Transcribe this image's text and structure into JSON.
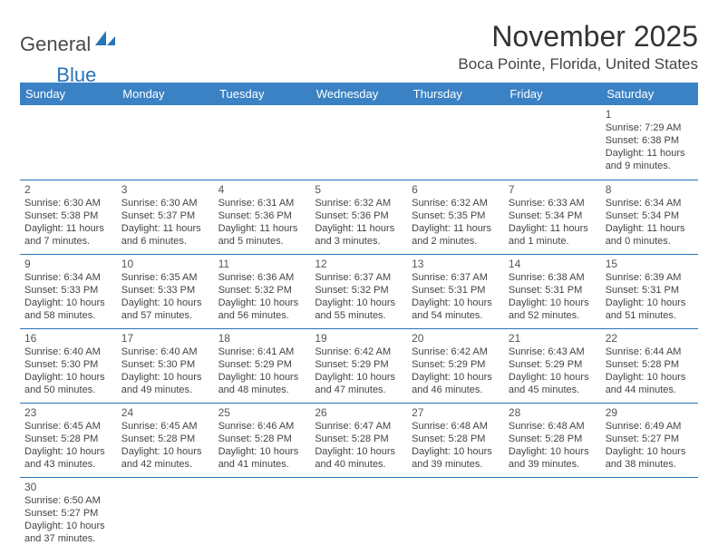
{
  "logo": {
    "general": "General",
    "blue": "Blue"
  },
  "title": "November 2025",
  "location": "Boca Pointe, Florida, United States",
  "colors": {
    "header_bg": "#3b82c4",
    "header_text": "#ffffff",
    "border": "#2874b8",
    "text": "#444444",
    "daynum": "#555555"
  },
  "weekdays": [
    "Sunday",
    "Monday",
    "Tuesday",
    "Wednesday",
    "Thursday",
    "Friday",
    "Saturday"
  ],
  "days": [
    {
      "n": "1",
      "sunrise": "Sunrise: 7:29 AM",
      "sunset": "Sunset: 6:38 PM",
      "daylight": "Daylight: 11 hours and 9 minutes."
    },
    {
      "n": "2",
      "sunrise": "Sunrise: 6:30 AM",
      "sunset": "Sunset: 5:38 PM",
      "daylight": "Daylight: 11 hours and 7 minutes."
    },
    {
      "n": "3",
      "sunrise": "Sunrise: 6:30 AM",
      "sunset": "Sunset: 5:37 PM",
      "daylight": "Daylight: 11 hours and 6 minutes."
    },
    {
      "n": "4",
      "sunrise": "Sunrise: 6:31 AM",
      "sunset": "Sunset: 5:36 PM",
      "daylight": "Daylight: 11 hours and 5 minutes."
    },
    {
      "n": "5",
      "sunrise": "Sunrise: 6:32 AM",
      "sunset": "Sunset: 5:36 PM",
      "daylight": "Daylight: 11 hours and 3 minutes."
    },
    {
      "n": "6",
      "sunrise": "Sunrise: 6:32 AM",
      "sunset": "Sunset: 5:35 PM",
      "daylight": "Daylight: 11 hours and 2 minutes."
    },
    {
      "n": "7",
      "sunrise": "Sunrise: 6:33 AM",
      "sunset": "Sunset: 5:34 PM",
      "daylight": "Daylight: 11 hours and 1 minute."
    },
    {
      "n": "8",
      "sunrise": "Sunrise: 6:34 AM",
      "sunset": "Sunset: 5:34 PM",
      "daylight": "Daylight: 11 hours and 0 minutes."
    },
    {
      "n": "9",
      "sunrise": "Sunrise: 6:34 AM",
      "sunset": "Sunset: 5:33 PM",
      "daylight": "Daylight: 10 hours and 58 minutes."
    },
    {
      "n": "10",
      "sunrise": "Sunrise: 6:35 AM",
      "sunset": "Sunset: 5:33 PM",
      "daylight": "Daylight: 10 hours and 57 minutes."
    },
    {
      "n": "11",
      "sunrise": "Sunrise: 6:36 AM",
      "sunset": "Sunset: 5:32 PM",
      "daylight": "Daylight: 10 hours and 56 minutes."
    },
    {
      "n": "12",
      "sunrise": "Sunrise: 6:37 AM",
      "sunset": "Sunset: 5:32 PM",
      "daylight": "Daylight: 10 hours and 55 minutes."
    },
    {
      "n": "13",
      "sunrise": "Sunrise: 6:37 AM",
      "sunset": "Sunset: 5:31 PM",
      "daylight": "Daylight: 10 hours and 54 minutes."
    },
    {
      "n": "14",
      "sunrise": "Sunrise: 6:38 AM",
      "sunset": "Sunset: 5:31 PM",
      "daylight": "Daylight: 10 hours and 52 minutes."
    },
    {
      "n": "15",
      "sunrise": "Sunrise: 6:39 AM",
      "sunset": "Sunset: 5:31 PM",
      "daylight": "Daylight: 10 hours and 51 minutes."
    },
    {
      "n": "16",
      "sunrise": "Sunrise: 6:40 AM",
      "sunset": "Sunset: 5:30 PM",
      "daylight": "Daylight: 10 hours and 50 minutes."
    },
    {
      "n": "17",
      "sunrise": "Sunrise: 6:40 AM",
      "sunset": "Sunset: 5:30 PM",
      "daylight": "Daylight: 10 hours and 49 minutes."
    },
    {
      "n": "18",
      "sunrise": "Sunrise: 6:41 AM",
      "sunset": "Sunset: 5:29 PM",
      "daylight": "Daylight: 10 hours and 48 minutes."
    },
    {
      "n": "19",
      "sunrise": "Sunrise: 6:42 AM",
      "sunset": "Sunset: 5:29 PM",
      "daylight": "Daylight: 10 hours and 47 minutes."
    },
    {
      "n": "20",
      "sunrise": "Sunrise: 6:42 AM",
      "sunset": "Sunset: 5:29 PM",
      "daylight": "Daylight: 10 hours and 46 minutes."
    },
    {
      "n": "21",
      "sunrise": "Sunrise: 6:43 AM",
      "sunset": "Sunset: 5:29 PM",
      "daylight": "Daylight: 10 hours and 45 minutes."
    },
    {
      "n": "22",
      "sunrise": "Sunrise: 6:44 AM",
      "sunset": "Sunset: 5:28 PM",
      "daylight": "Daylight: 10 hours and 44 minutes."
    },
    {
      "n": "23",
      "sunrise": "Sunrise: 6:45 AM",
      "sunset": "Sunset: 5:28 PM",
      "daylight": "Daylight: 10 hours and 43 minutes."
    },
    {
      "n": "24",
      "sunrise": "Sunrise: 6:45 AM",
      "sunset": "Sunset: 5:28 PM",
      "daylight": "Daylight: 10 hours and 42 minutes."
    },
    {
      "n": "25",
      "sunrise": "Sunrise: 6:46 AM",
      "sunset": "Sunset: 5:28 PM",
      "daylight": "Daylight: 10 hours and 41 minutes."
    },
    {
      "n": "26",
      "sunrise": "Sunrise: 6:47 AM",
      "sunset": "Sunset: 5:28 PM",
      "daylight": "Daylight: 10 hours and 40 minutes."
    },
    {
      "n": "27",
      "sunrise": "Sunrise: 6:48 AM",
      "sunset": "Sunset: 5:28 PM",
      "daylight": "Daylight: 10 hours and 39 minutes."
    },
    {
      "n": "28",
      "sunrise": "Sunrise: 6:48 AM",
      "sunset": "Sunset: 5:28 PM",
      "daylight": "Daylight: 10 hours and 39 minutes."
    },
    {
      "n": "29",
      "sunrise": "Sunrise: 6:49 AM",
      "sunset": "Sunset: 5:27 PM",
      "daylight": "Daylight: 10 hours and 38 minutes."
    },
    {
      "n": "30",
      "sunrise": "Sunrise: 6:50 AM",
      "sunset": "Sunset: 5:27 PM",
      "daylight": "Daylight: 10 hours and 37 minutes."
    }
  ]
}
